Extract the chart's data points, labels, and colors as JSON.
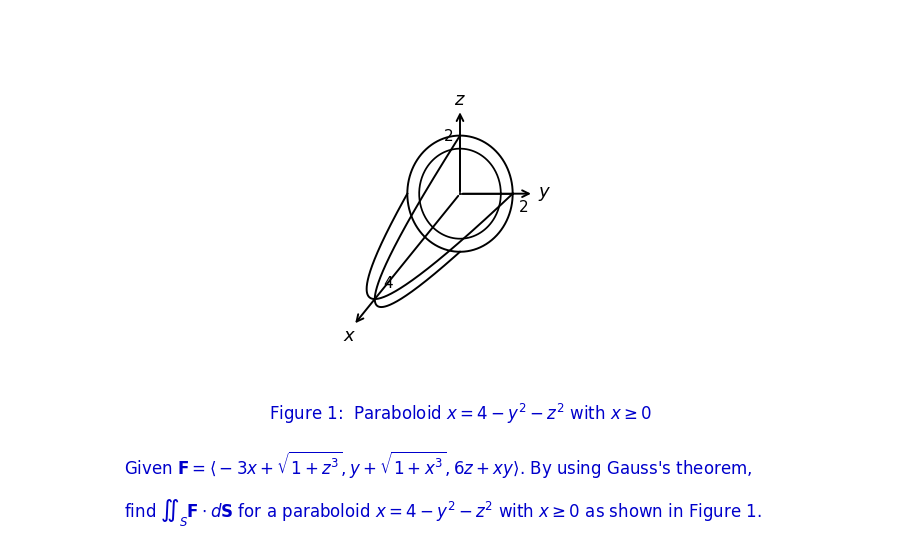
{
  "background_color": "#ffffff",
  "fig_width": 9.2,
  "fig_height": 5.38,
  "dpi": 100,
  "figure_caption": "Figure 1:  Paraboloid $x = 4 - y^2 - z^2$ with $x \\geq 0$",
  "problem_line1": "Given $\\mathbf{F} =\\langle -3x + \\sqrt{1+z^3}, y + \\sqrt{1+x^3}, 6z + xy \\rangle$. By using Gauss's theorem,",
  "problem_line2": "find $\\iint_S \\mathbf{F} \\cdot d\\mathbf{S}$ for a paraboloid $x = 4 - y^2 - z^2$ with $x \\geq 0$ as shown in Figure 1.",
  "text_color": "#0000cc",
  "axis_color": "#000000",
  "paraboloid_color": "#000000",
  "caption_fontsize": 12,
  "problem_fontsize": 12,
  "axis_label_fontsize": 13,
  "tick_label_fontsize": 11,
  "ox": 0.5,
  "oy": 0.5,
  "ux": [
    -0.055,
    -0.068
  ],
  "uy": [
    0.068,
    0.0
  ],
  "uz": [
    0.0,
    0.075
  ]
}
